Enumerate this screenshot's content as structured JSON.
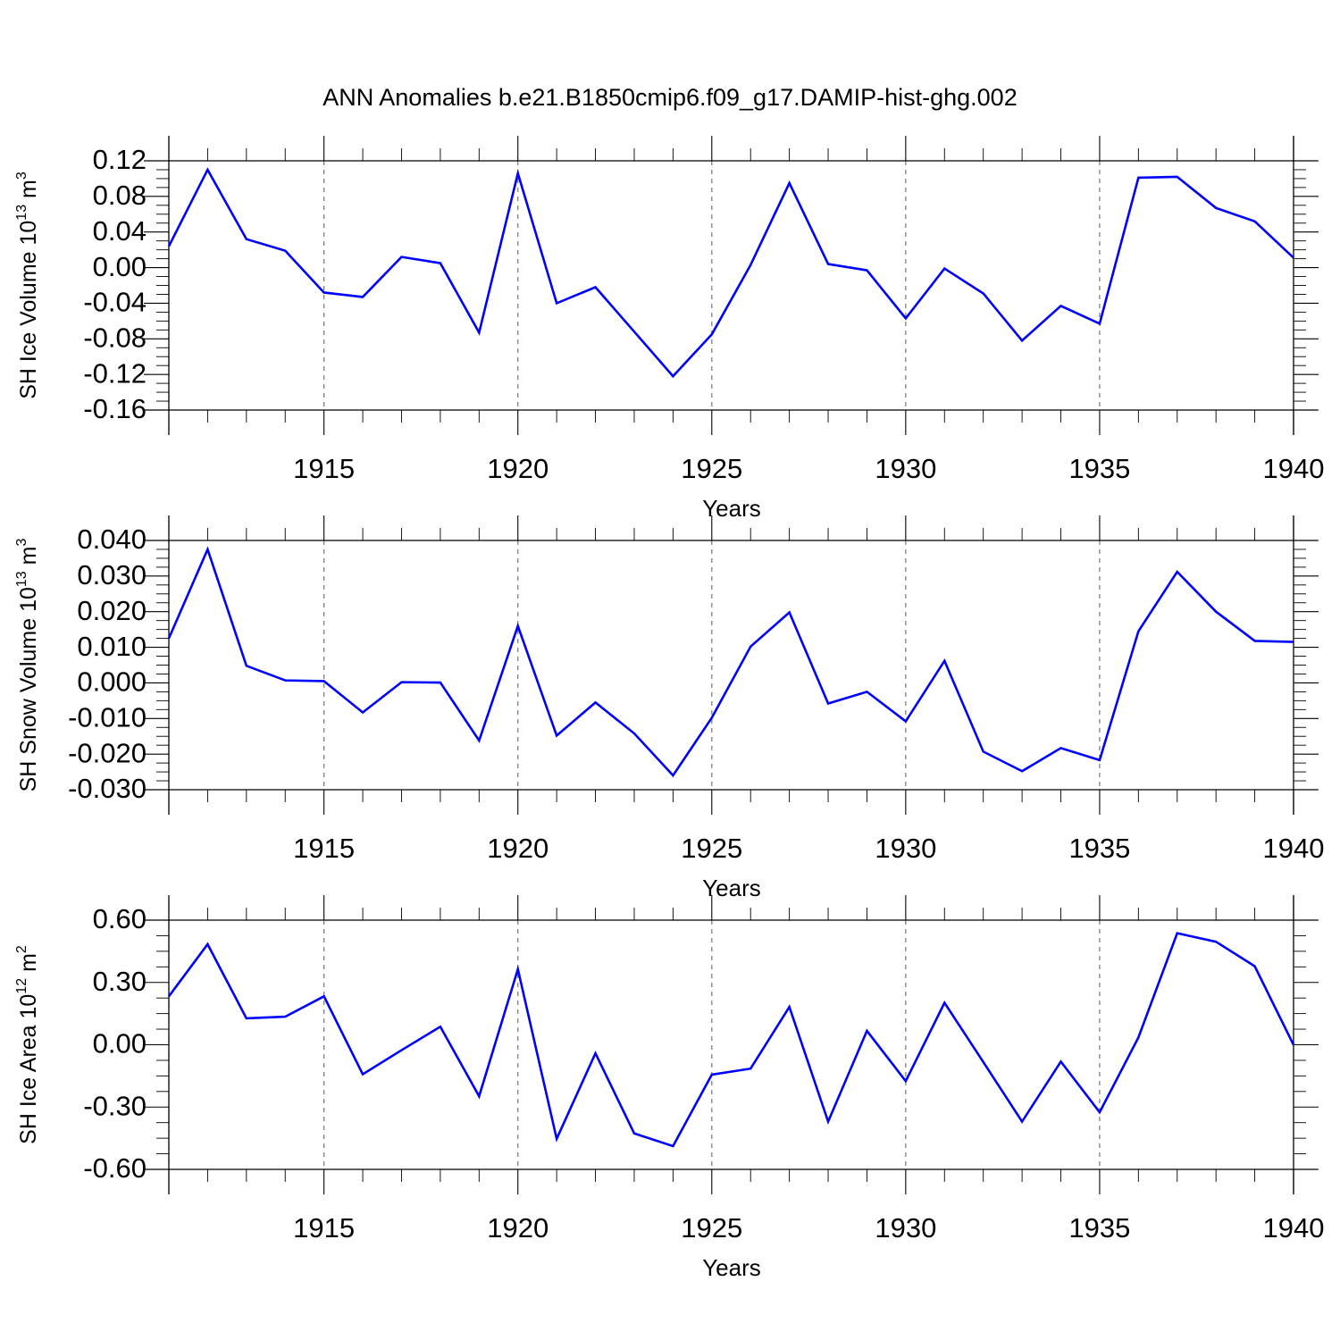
{
  "title": "ANN Anomalies b.e21.B1850cmip6.f09_g17.DAMIP-hist-ghg.002",
  "colors": {
    "line": "#0000ff"
  },
  "chart_data": [
    {
      "type": "line",
      "xlabel": "Years",
      "ylabel": {
        "text": "SH Ice Volume 10",
        "sup": "13",
        "unit": " m",
        "unit_sup": "3"
      },
      "xlim": [
        1911,
        1940
      ],
      "ylim": [
        -0.16,
        0.12
      ],
      "x_ticks": [
        1915,
        1920,
        1925,
        1930,
        1935,
        1940
      ],
      "x_tick_labels": [
        "1915",
        "1920",
        "1925",
        "1930",
        "1935",
        "1940"
      ],
      "y_ticks": [
        0.12,
        0.08,
        0.04,
        0.0,
        -0.04,
        -0.08,
        -0.12,
        -0.16
      ],
      "y_tick_labels": [
        "0.12",
        "0.08",
        "0.04",
        "0.00",
        "-0.04",
        "-0.08",
        "-0.12",
        "-0.16"
      ],
      "grid": "dashed vertical at major x ticks",
      "x": [
        1911,
        1912,
        1913,
        1914,
        1915,
        1916,
        1917,
        1918,
        1919,
        1920,
        1921,
        1922,
        1923,
        1924,
        1925,
        1926,
        1927,
        1928,
        1929,
        1930,
        1931,
        1932,
        1933,
        1934,
        1935,
        1936,
        1937,
        1938,
        1939,
        1940
      ],
      "series": [
        {
          "values": [
            0.024,
            0.11,
            0.032,
            0.019,
            -0.028,
            -0.033,
            0.012,
            0.005,
            -0.073,
            0.106,
            -0.04,
            -0.022,
            -0.072,
            -0.122,
            -0.075,
            0.003,
            0.095,
            0.004,
            -0.003,
            -0.057,
            -0.001,
            -0.029,
            -0.082,
            -0.043,
            -0.063,
            0.101,
            0.102,
            0.067,
            0.052,
            0.011
          ]
        }
      ]
    },
    {
      "type": "line",
      "xlabel": "Years",
      "ylabel": {
        "text": "SH Snow Volume 10",
        "sup": "13",
        "unit": " m",
        "unit_sup": "3"
      },
      "xlim": [
        1911,
        1940
      ],
      "ylim": [
        -0.03,
        0.04
      ],
      "x_ticks": [
        1915,
        1920,
        1925,
        1930,
        1935,
        1940
      ],
      "x_tick_labels": [
        "1915",
        "1920",
        "1925",
        "1930",
        "1935",
        "1940"
      ],
      "y_ticks": [
        0.04,
        0.03,
        0.02,
        0.01,
        0.0,
        -0.01,
        -0.02,
        -0.03
      ],
      "y_tick_labels": [
        "0.040",
        "0.030",
        "0.020",
        "0.010",
        "0.000",
        "-0.010",
        "-0.020",
        "-0.030"
      ],
      "grid": "dashed vertical at major x ticks",
      "x": [
        1911,
        1912,
        1913,
        1914,
        1915,
        1916,
        1917,
        1918,
        1919,
        1920,
        1921,
        1922,
        1923,
        1924,
        1925,
        1926,
        1927,
        1928,
        1929,
        1930,
        1931,
        1932,
        1933,
        1934,
        1935,
        1936,
        1937,
        1938,
        1939,
        1940
      ],
      "series": [
        {
          "values": [
            0.0125,
            0.0375,
            0.0048,
            0.0007,
            0.0005,
            -0.0083,
            0.0002,
            0.0001,
            -0.0162,
            0.016,
            -0.0148,
            -0.0055,
            -0.0142,
            -0.026,
            -0.0098,
            0.0102,
            0.0198,
            -0.0058,
            -0.0025,
            -0.0108,
            0.0062,
            -0.0193,
            -0.0248,
            -0.0183,
            -0.0217,
            0.0145,
            0.0312,
            0.02,
            0.0118,
            0.0115
          ]
        }
      ]
    },
    {
      "type": "line",
      "xlabel": "Years",
      "ylabel": {
        "text": "SH Ice Area 10",
        "sup": "12",
        "unit": " m",
        "unit_sup": "2"
      },
      "xlim": [
        1911,
        1940
      ],
      "ylim": [
        -0.6,
        0.6
      ],
      "x_ticks": [
        1915,
        1920,
        1925,
        1930,
        1935,
        1940
      ],
      "x_tick_labels": [
        "1915",
        "1920",
        "1925",
        "1930",
        "1935",
        "1940"
      ],
      "y_ticks": [
        0.6,
        0.3,
        0.0,
        -0.3,
        -0.6
      ],
      "y_tick_labels": [
        "0.60",
        "0.30",
        "0.00",
        "-0.30",
        "-0.60"
      ],
      "grid": "dashed vertical at major x ticks",
      "x": [
        1911,
        1912,
        1913,
        1914,
        1915,
        1916,
        1917,
        1918,
        1919,
        1920,
        1921,
        1922,
        1923,
        1924,
        1925,
        1926,
        1927,
        1928,
        1929,
        1930,
        1931,
        1932,
        1933,
        1934,
        1935,
        1936,
        1937,
        1938,
        1939,
        1940
      ],
      "series": [
        {
          "values": [
            0.233,
            0.484,
            0.127,
            0.135,
            0.233,
            -0.142,
            -0.026,
            0.087,
            -0.248,
            0.364,
            -0.453,
            -0.041,
            -0.427,
            -0.488,
            -0.144,
            -0.115,
            0.182,
            -0.37,
            0.067,
            -0.175,
            0.202,
            -0.083,
            -0.37,
            -0.081,
            -0.325,
            0.035,
            0.537,
            0.496,
            0.378,
            -0.001
          ]
        }
      ]
    }
  ]
}
